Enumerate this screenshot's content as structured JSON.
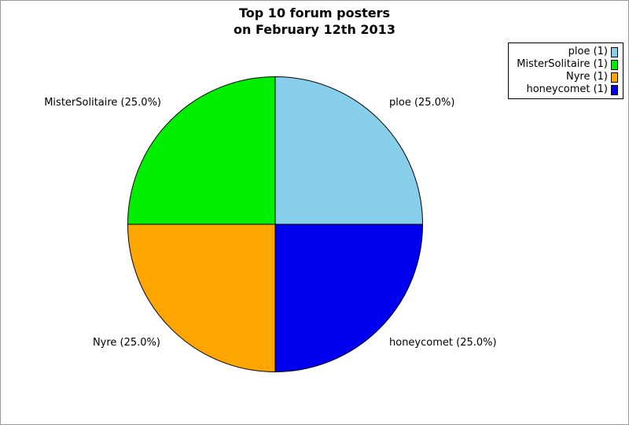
{
  "window": {
    "background": "#FFFFFF",
    "border_color": "#999999"
  },
  "chart_data": {
    "type": "pie",
    "title": "Top 10 forum posters",
    "subtitle": "on February 12th 2013",
    "title_lines": [
      "Top 10 forum posters",
      "on February 12th 2013"
    ],
    "total": 4,
    "start_angle_deg": 0,
    "direction": "counterclockwise",
    "outline_color": "#000000",
    "legend_position": "top-right",
    "slices": [
      {
        "name": "ploe",
        "value": 1,
        "percent": "25.0%",
        "label": "ploe (25.0%)",
        "legend_label": "ploe (1)",
        "color": "#87CEEB"
      },
      {
        "name": "MisterSolitaire",
        "value": 1,
        "percent": "25.0%",
        "label": "MisterSolitaire (25.0%)",
        "legend_label": "MisterSolitaire (1)",
        "color": "#00EE00"
      },
      {
        "name": "Nyre",
        "value": 1,
        "percent": "25.0%",
        "label": "Nyre (25.0%)",
        "legend_label": "Nyre (1)",
        "color": "#FFA500"
      },
      {
        "name": "honeycomet",
        "value": 1,
        "percent": "25.0%",
        "label": "honeycomet (25.0%)",
        "legend_label": "honeycomet (1)",
        "color": "#0000EE"
      }
    ]
  }
}
